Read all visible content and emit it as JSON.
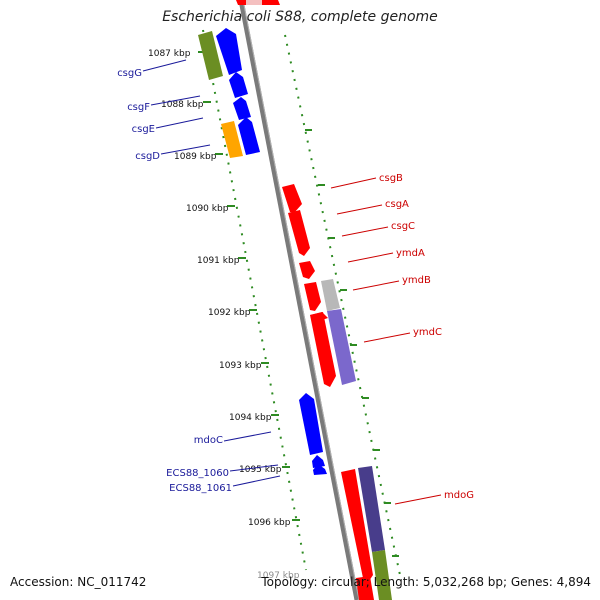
{
  "title": "Escherichia coli S88, complete genome",
  "accession": "Accession: NC_011742",
  "topology": "Topology: circular; Length: 5,032,268 bp; Genes: 4,894",
  "ticks": [
    "1087 kbp",
    "1088 kbp",
    "1089 kbp",
    "1090 kbp",
    "1091 kbp",
    "1092 kbp",
    "1093 kbp",
    "1094 kbp",
    "1095 kbp",
    "1096 kbp",
    "1097 kbp"
  ],
  "genes_left": [
    "csgG",
    "csgF",
    "csgE",
    "csgD",
    "mdoC",
    "ECS88_1060",
    "ECS88_1061"
  ],
  "genes_right": [
    "csgB",
    "csgA",
    "csgC",
    "ymdA",
    "ymdB",
    "ymdC",
    "mdoG"
  ],
  "colors": {
    "forward_strand": "#ff0000",
    "reverse_strand": "#0000ff",
    "left_label": "#1a1a9a",
    "right_label": "#cc0000",
    "tick": "#2e8b22",
    "backbone": "#7a7a7a"
  }
}
